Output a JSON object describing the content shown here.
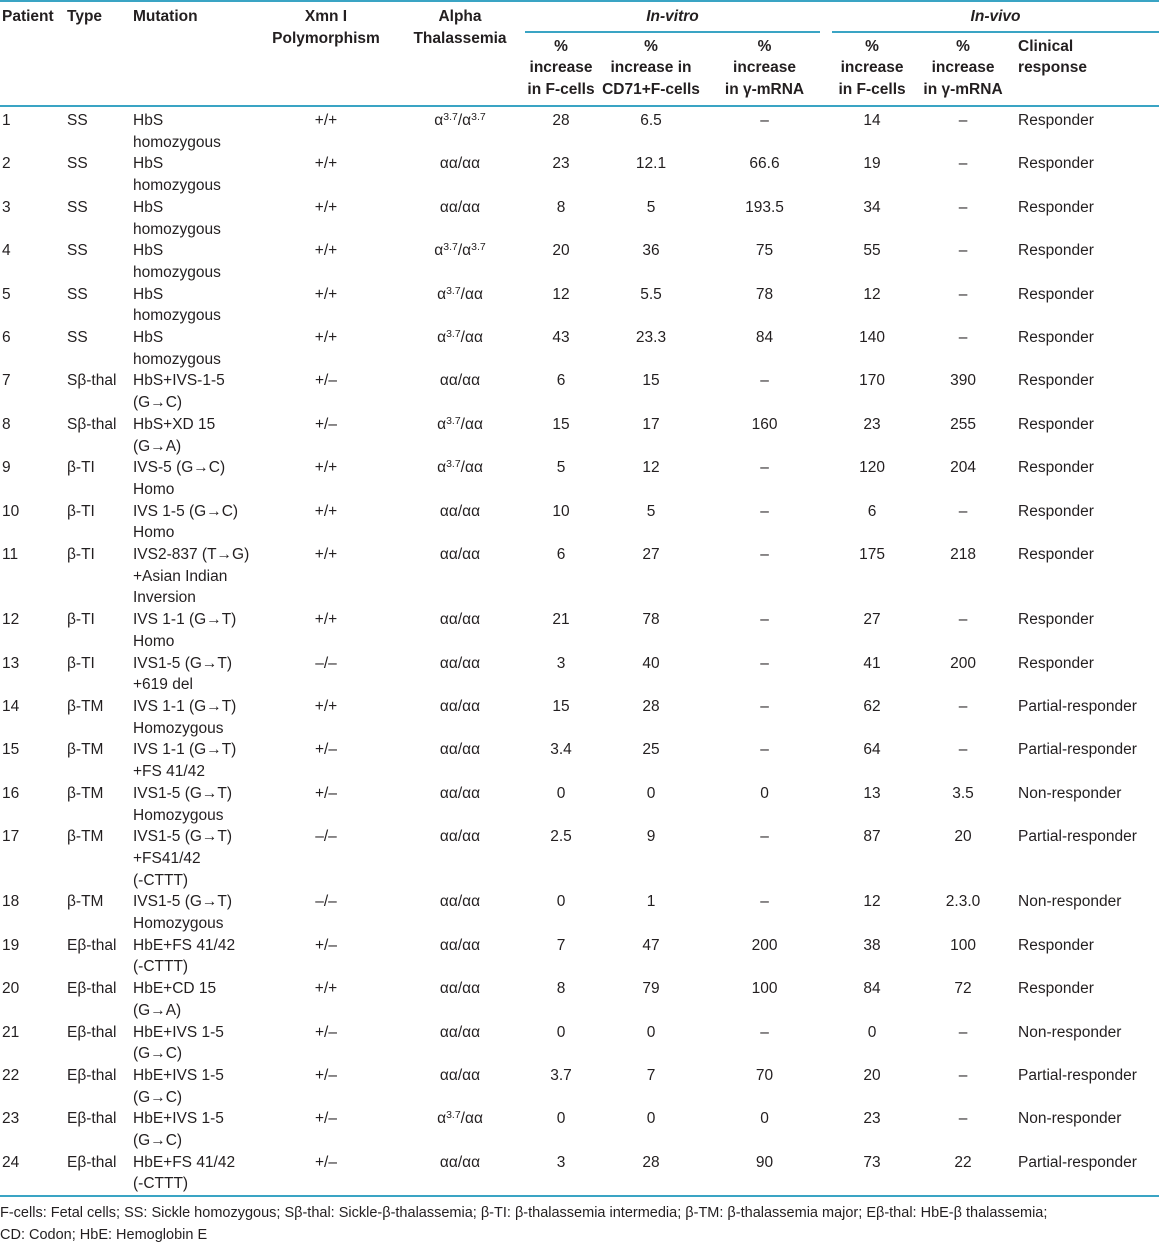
{
  "colors": {
    "rule": "#3aa4c4",
    "text": "#231f20",
    "background": "#ffffff"
  },
  "header": {
    "patient": "Patient",
    "type": "Type",
    "mutation": "Mutation",
    "xmn_polymorphism": "Xmn I\nPolymorphism",
    "alpha_thalassemia": "Alpha\nThalassemia",
    "in_vitro": "In-vitro",
    "in_vivo": "In-vivo",
    "sub": {
      "vitro_fcells": "%\nincrease\nin F-cells",
      "vitro_cd71": "%\nincrease in\nCD71+F-cells",
      "vitro_mrna": "%\nincrease\nin γ-mRNA",
      "vivo_fcells": "%\nincrease\nin F-cells",
      "vivo_mrna": "%\nincrease\nin γ-mRNA",
      "clinical": "Clinical\nresponse"
    }
  },
  "rows": [
    {
      "patient": "1",
      "type": "SS",
      "mutation": "HbS\nhomozygous",
      "xmn": "+/+",
      "alpha": "α^3.7/α^3.7",
      "vitro_fcells": "28",
      "vitro_cd71": "6.5",
      "vitro_mrna": "–",
      "vivo_fcells": "14",
      "vivo_mrna": "–",
      "response": "Responder"
    },
    {
      "patient": "2",
      "type": "SS",
      "mutation": "HbS\nhomozygous",
      "xmn": "+/+",
      "alpha": "αα/αα",
      "vitro_fcells": "23",
      "vitro_cd71": "12.1",
      "vitro_mrna": "66.6",
      "vivo_fcells": "19",
      "vivo_mrna": "–",
      "response": "Responder"
    },
    {
      "patient": "3",
      "type": "SS",
      "mutation": "HbS\nhomozygous",
      "xmn": "+/+",
      "alpha": "αα/αα",
      "vitro_fcells": "8",
      "vitro_cd71": "5",
      "vitro_mrna": "193.5",
      "vivo_fcells": "34",
      "vivo_mrna": "–",
      "response": "Responder"
    },
    {
      "patient": "4",
      "type": "SS",
      "mutation": "HbS\nhomozygous",
      "xmn": "+/+",
      "alpha": "α^3.7/α^3.7",
      "vitro_fcells": "20",
      "vitro_cd71": "36",
      "vitro_mrna": "75",
      "vivo_fcells": "55",
      "vivo_mrna": "–",
      "response": "Responder"
    },
    {
      "patient": "5",
      "type": "SS",
      "mutation": "HbS\nhomozygous",
      "xmn": "+/+",
      "alpha": "α^3.7/αα",
      "vitro_fcells": "12",
      "vitro_cd71": "5.5",
      "vitro_mrna": "78",
      "vivo_fcells": "12",
      "vivo_mrna": "–",
      "response": "Responder"
    },
    {
      "patient": "6",
      "type": "SS",
      "mutation": "HbS\nhomozygous",
      "xmn": "+/+",
      "alpha": "α^3.7/αα",
      "vitro_fcells": "43",
      "vitro_cd71": "23.3",
      "vitro_mrna": "84",
      "vivo_fcells": "140",
      "vivo_mrna": "–",
      "response": "Responder"
    },
    {
      "patient": "7",
      "type": "Sβ-thal",
      "mutation": "HbS+IVS-1-5\n(G→C)",
      "xmn": "+/–",
      "alpha": "αα/αα",
      "vitro_fcells": "6",
      "vitro_cd71": "15",
      "vitro_mrna": "–",
      "vivo_fcells": "170",
      "vivo_mrna": "390",
      "response": "Responder"
    },
    {
      "patient": "8",
      "type": "Sβ-thal",
      "mutation": "HbS+XD 15\n(G→A)",
      "xmn": "+/–",
      "alpha": "α^3.7/αα",
      "vitro_fcells": "15",
      "vitro_cd71": "17",
      "vitro_mrna": "160",
      "vivo_fcells": "23",
      "vivo_mrna": "255",
      "response": "Responder"
    },
    {
      "patient": "9",
      "type": "β-TI",
      "mutation": "IVS-5 (G→C)\nHomo",
      "xmn": "+/+",
      "alpha": "α^3.7/αα",
      "vitro_fcells": "5",
      "vitro_cd71": "12",
      "vitro_mrna": "–",
      "vivo_fcells": "120",
      "vivo_mrna": "204",
      "response": "Responder"
    },
    {
      "patient": "10",
      "type": "β-TI",
      "mutation": "IVS 1-5 (G→C)\nHomo",
      "xmn": "+/+",
      "alpha": "αα/αα",
      "vitro_fcells": "10",
      "vitro_cd71": "5",
      "vitro_mrna": "–",
      "vivo_fcells": "6",
      "vivo_mrna": "–",
      "response": "Responder"
    },
    {
      "patient": "11",
      "type": "β-TI",
      "mutation": "IVS2-837 (T→G)\n+Asian Indian\nInversion",
      "xmn": "+/+",
      "alpha": "αα/αα",
      "vitro_fcells": "6",
      "vitro_cd71": "27",
      "vitro_mrna": "–",
      "vivo_fcells": "175",
      "vivo_mrna": "218",
      "response": "Responder"
    },
    {
      "patient": "12",
      "type": "β-TI",
      "mutation": "IVS 1-1 (G→T)\nHomo",
      "xmn": "+/+",
      "alpha": "αα/αα",
      "vitro_fcells": "21",
      "vitro_cd71": "78",
      "vitro_mrna": "–",
      "vivo_fcells": "27",
      "vivo_mrna": "–",
      "response": "Responder"
    },
    {
      "patient": "13",
      "type": "β-TI",
      "mutation": "IVS1-5 (G→T)\n+619 del",
      "xmn": "–/–",
      "alpha": "αα/αα",
      "vitro_fcells": "3",
      "vitro_cd71": "40",
      "vitro_mrna": "–",
      "vivo_fcells": "41",
      "vivo_mrna": "200",
      "response": "Responder"
    },
    {
      "patient": "14",
      "type": "β-TM",
      "mutation": "IVS 1-1 (G→T)\nHomozygous",
      "xmn": "+/+",
      "alpha": "αα/αα",
      "vitro_fcells": "15",
      "vitro_cd71": "28",
      "vitro_mrna": "–",
      "vivo_fcells": "62",
      "vivo_mrna": "–",
      "response": "Partial-responder"
    },
    {
      "patient": "15",
      "type": "β-TM",
      "mutation": "IVS 1-1 (G→T)\n+FS 41/42",
      "xmn": "+/–",
      "alpha": "αα/αα",
      "vitro_fcells": "3.4",
      "vitro_cd71": "25",
      "vitro_mrna": "–",
      "vivo_fcells": "64",
      "vivo_mrna": "–",
      "response": "Partial-responder"
    },
    {
      "patient": "16",
      "type": "β-TM",
      "mutation": "IVS1-5 (G→T)\nHomozygous",
      "xmn": "+/–",
      "alpha": "αα/αα",
      "vitro_fcells": "0",
      "vitro_cd71": "0",
      "vitro_mrna": "0",
      "vivo_fcells": "13",
      "vivo_mrna": "3.5",
      "response": "Non-responder"
    },
    {
      "patient": "17",
      "type": "β-TM",
      "mutation": "IVS1-5 (G→T)\n+FS41/42\n(-CTTT)",
      "xmn": "–/–",
      "alpha": "αα/αα",
      "vitro_fcells": "2.5",
      "vitro_cd71": "9",
      "vitro_mrna": "–",
      "vivo_fcells": "87",
      "vivo_mrna": "20",
      "response": "Partial-responder"
    },
    {
      "patient": "18",
      "type": "β-TM",
      "mutation": "IVS1-5 (G→T)\nHomozygous",
      "xmn": "–/–",
      "alpha": "αα/αα",
      "vitro_fcells": "0",
      "vitro_cd71": "1",
      "vitro_mrna": "–",
      "vivo_fcells": "12",
      "vivo_mrna": "2.3.0",
      "response": "Non-responder"
    },
    {
      "patient": "19",
      "type": "Eβ-thal",
      "mutation": "HbE+FS 41/42\n(-CTTT)",
      "xmn": "+/–",
      "alpha": "αα/αα",
      "vitro_fcells": "7",
      "vitro_cd71": "47",
      "vitro_mrna": "200",
      "vivo_fcells": "38",
      "vivo_mrna": "100",
      "response": "Responder"
    },
    {
      "patient": "20",
      "type": "Eβ-thal",
      "mutation": "HbE+CD 15\n(G→A)",
      "xmn": "+/+",
      "alpha": "αα/αα",
      "vitro_fcells": "8",
      "vitro_cd71": "79",
      "vitro_mrna": "100",
      "vivo_fcells": "84",
      "vivo_mrna": "72",
      "response": "Responder"
    },
    {
      "patient": "21",
      "type": "Eβ-thal",
      "mutation": "HbE+IVS 1-5\n(G→C)",
      "xmn": "+/–",
      "alpha": "αα/αα",
      "vitro_fcells": "0",
      "vitro_cd71": "0",
      "vitro_mrna": "–",
      "vivo_fcells": "0",
      "vivo_mrna": "–",
      "response": "Non-responder"
    },
    {
      "patient": "22",
      "type": "Eβ-thal",
      "mutation": "HbE+IVS 1-5\n(G→C)",
      "xmn": "+/–",
      "alpha": "αα/αα",
      "vitro_fcells": "3.7",
      "vitro_cd71": "7",
      "vitro_mrna": "70",
      "vivo_fcells": "20",
      "vivo_mrna": "–",
      "response": "Partial-responder"
    },
    {
      "patient": "23",
      "type": "Eβ-thal",
      "mutation": "HbE+IVS 1-5\n(G→C)",
      "xmn": "+/–",
      "alpha": "α^3.7/αα",
      "vitro_fcells": "0",
      "vitro_cd71": "0",
      "vitro_mrna": "0",
      "vivo_fcells": "23",
      "vivo_mrna": "–",
      "response": "Non-responder"
    },
    {
      "patient": "24",
      "type": "Eβ-thal",
      "mutation": "HbE+FS 41/42\n(-CTTT)",
      "xmn": "+/–",
      "alpha": "αα/αα",
      "vitro_fcells": "3",
      "vitro_cd71": "28",
      "vitro_mrna": "90",
      "vivo_fcells": "73",
      "vivo_mrna": "22",
      "response": "Partial-responder"
    }
  ],
  "footnote": {
    "line1": "F-cells: Fetal cells; SS: Sickle homozygous; Sβ-thal: Sickle-β-thalassemia; β-TI: β-thalassemia intermedia; β-TM: β-thalassemia major; Eβ-thal: HbE-β thalassemia;",
    "line2": "CD: Codon; HbE: Hemoglobin E"
  }
}
